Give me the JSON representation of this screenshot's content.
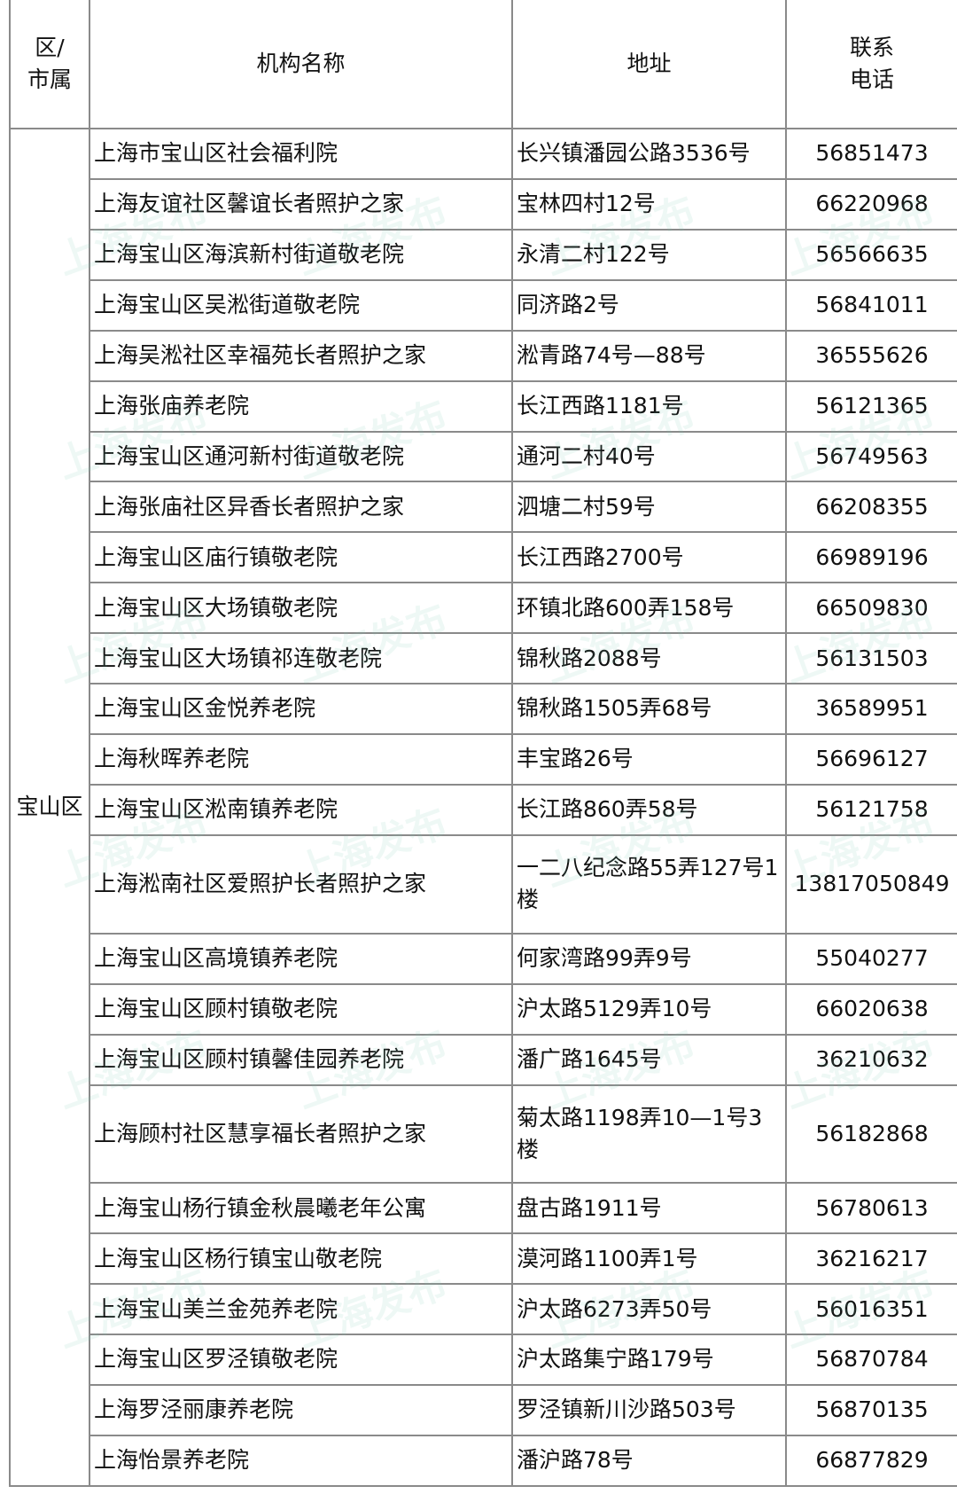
{
  "header": {
    "district": "区/\n市属",
    "district_line1": "区/",
    "district_line2": "市属",
    "name": "机构名称",
    "address": "地址",
    "phone_line1": "联系",
    "phone_line2": "电话"
  },
  "district_value": "宝山区",
  "watermark": "上海发布",
  "rows": [
    {
      "name": "上海市宝山区社会福利院",
      "address": "长兴镇潘园公路3536号",
      "phone": "56851473"
    },
    {
      "name": "上海友谊社区馨谊长者照护之家",
      "address": "宝林四村12号",
      "phone": "66220968"
    },
    {
      "name": "上海宝山区海滨新村街道敬老院",
      "address": "永清二村122号",
      "phone": "56566635"
    },
    {
      "name": "上海宝山区吴淞街道敬老院",
      "address": "同济路2号",
      "phone": "56841011"
    },
    {
      "name": "上海吴淞社区幸福苑长者照护之家",
      "address": "淞青路74号—88号",
      "phone": "36555626"
    },
    {
      "name": "上海张庙养老院",
      "address": "长江西路1181号",
      "phone": "56121365"
    },
    {
      "name": "上海宝山区通河新村街道敬老院",
      "address": "通河二村40号",
      "phone": "56749563"
    },
    {
      "name": "上海张庙社区异香长者照护之家",
      "address": "泗塘二村59号",
      "phone": "66208355"
    },
    {
      "name": "上海宝山区庙行镇敬老院",
      "address": "长江西路2700号",
      "phone": "66989196"
    },
    {
      "name": "上海宝山区大场镇敬老院",
      "address": "环镇北路600弄158号",
      "phone": "66509830"
    },
    {
      "name": "上海宝山区大场镇祁连敬老院",
      "address": "锦秋路2088号",
      "phone": "56131503"
    },
    {
      "name": "上海宝山区金悦养老院",
      "address": "锦秋路1505弄68号",
      "phone": "36589951"
    },
    {
      "name": "上海秋晖养老院",
      "address": "丰宝路26号",
      "phone": "56696127"
    },
    {
      "name": "上海宝山区淞南镇养老院",
      "address": "长江路860弄58号",
      "phone": "56121758"
    },
    {
      "name": "上海淞南社区爱照护长者照护之家",
      "address": "一二八纪念路55弄127号1楼",
      "phone": "13817050849"
    },
    {
      "name": "上海宝山区高境镇养老院",
      "address": "何家湾路99弄9号",
      "phone": "55040277"
    },
    {
      "name": "上海宝山区顾村镇敬老院",
      "address": "沪太路5129弄10号",
      "phone": "66020638"
    },
    {
      "name": "上海宝山区顾村镇馨佳园养老院",
      "address": "潘广路1645号",
      "phone": "36210632"
    },
    {
      "name": "上海顾村社区慧享福长者照护之家",
      "address": "菊太路1198弄10—1号3楼",
      "phone": "56182868"
    },
    {
      "name": "上海宝山杨行镇金秋晨曦老年公寓",
      "address": "盘古路1911号",
      "phone": "56780613"
    },
    {
      "name": "上海宝山区杨行镇宝山敬老院",
      "address": "漠河路1100弄1号",
      "phone": "36216217"
    },
    {
      "name": "上海宝山美兰金苑养老院",
      "address": "沪太路6273弄50号",
      "phone": "56016351"
    },
    {
      "name": "上海宝山区罗泾镇敬老院",
      "address": "沪太路集宁路179号",
      "phone": "56870784"
    },
    {
      "name": "上海罗泾丽康养老院",
      "address": "罗泾镇新川沙路503号",
      "phone": "56870135"
    },
    {
      "name": "上海怡景养老院",
      "address": "潘沪路78号",
      "phone": "66877829"
    }
  ]
}
